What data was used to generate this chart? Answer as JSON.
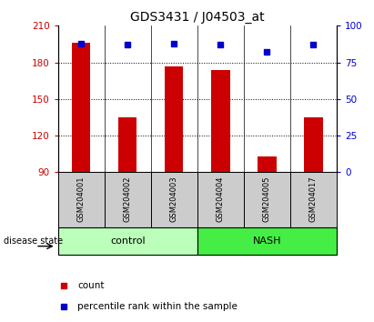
{
  "title": "GDS3431 / J04503_at",
  "samples": [
    "GSM204001",
    "GSM204002",
    "GSM204003",
    "GSM204004",
    "GSM204005",
    "GSM204017"
  ],
  "bar_values": [
    196,
    135,
    177,
    174,
    103,
    135
  ],
  "percentile_values": [
    88,
    87,
    88,
    87,
    82,
    87
  ],
  "y_min": 90,
  "y_max": 210,
  "y_ticks_left": [
    90,
    120,
    150,
    180,
    210
  ],
  "y_ticks_right_vals": [
    0,
    25,
    50,
    75,
    100
  ],
  "bar_color": "#cc0000",
  "percentile_color": "#0000cc",
  "group_control_label": "control",
  "group_nash_label": "NASH",
  "group_control_color": "#bbffbb",
  "group_nash_color": "#44ee44",
  "xlabel_group": "disease state",
  "legend_count_label": "count",
  "legend_percentile_label": "percentile rank within the sample",
  "tick_label_color_left": "#cc0000",
  "tick_label_color_right": "#0000cc",
  "sample_box_color": "#cccccc",
  "plot_bg_color": "#ffffff",
  "title_fontsize": 10,
  "bar_width": 0.4
}
